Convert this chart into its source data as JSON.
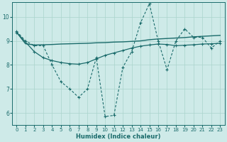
{
  "xlabel": "Humidex (Indice chaleur)",
  "bg_color": "#ceeae8",
  "line_color": "#1a6b6b",
  "grid_color": "#aad4cc",
  "xlim": [
    -0.5,
    23.5
  ],
  "ylim": [
    5.5,
    10.6
  ],
  "yticks": [
    6,
    7,
    8,
    9,
    10
  ],
  "xticks": [
    0,
    1,
    2,
    3,
    4,
    5,
    6,
    7,
    8,
    9,
    10,
    11,
    12,
    13,
    14,
    15,
    16,
    17,
    18,
    19,
    20,
    21,
    22,
    23
  ],
  "dotted_x": [
    0,
    1,
    2,
    3,
    4,
    5,
    6,
    7,
    8,
    9,
    10,
    11,
    12,
    13,
    14,
    15,
    16,
    17,
    18,
    19,
    20,
    21,
    22,
    23
  ],
  "dotted_y": [
    9.4,
    9.0,
    8.8,
    8.8,
    8.0,
    7.3,
    7.0,
    6.65,
    7.0,
    8.3,
    5.85,
    5.9,
    7.9,
    8.55,
    9.75,
    10.55,
    9.0,
    7.8,
    9.0,
    9.5,
    9.15,
    9.15,
    8.7,
    9.0
  ],
  "solid1_x": [
    0,
    1,
    2,
    3,
    4,
    5,
    6,
    7,
    8,
    9,
    10,
    11,
    12,
    13,
    14,
    15,
    16,
    17,
    18,
    19,
    20,
    21,
    22,
    23
  ],
  "solid1_y": [
    9.35,
    8.88,
    8.83,
    8.84,
    8.85,
    8.87,
    8.88,
    8.89,
    8.9,
    8.92,
    8.93,
    8.95,
    8.96,
    8.98,
    9.0,
    9.05,
    9.08,
    9.1,
    9.12,
    9.14,
    9.17,
    9.19,
    9.21,
    9.23
  ],
  "solid2_x": [
    0,
    2,
    3,
    4,
    5,
    6,
    7,
    8,
    9,
    10,
    11,
    12,
    13,
    14,
    15,
    16,
    17,
    18,
    19,
    20,
    21,
    22,
    23
  ],
  "solid2_y": [
    9.35,
    8.55,
    8.3,
    8.18,
    8.1,
    8.05,
    8.03,
    8.1,
    8.25,
    8.4,
    8.5,
    8.6,
    8.7,
    8.78,
    8.83,
    8.87,
    8.85,
    8.8,
    8.82,
    8.84,
    8.87,
    8.88,
    8.9
  ]
}
